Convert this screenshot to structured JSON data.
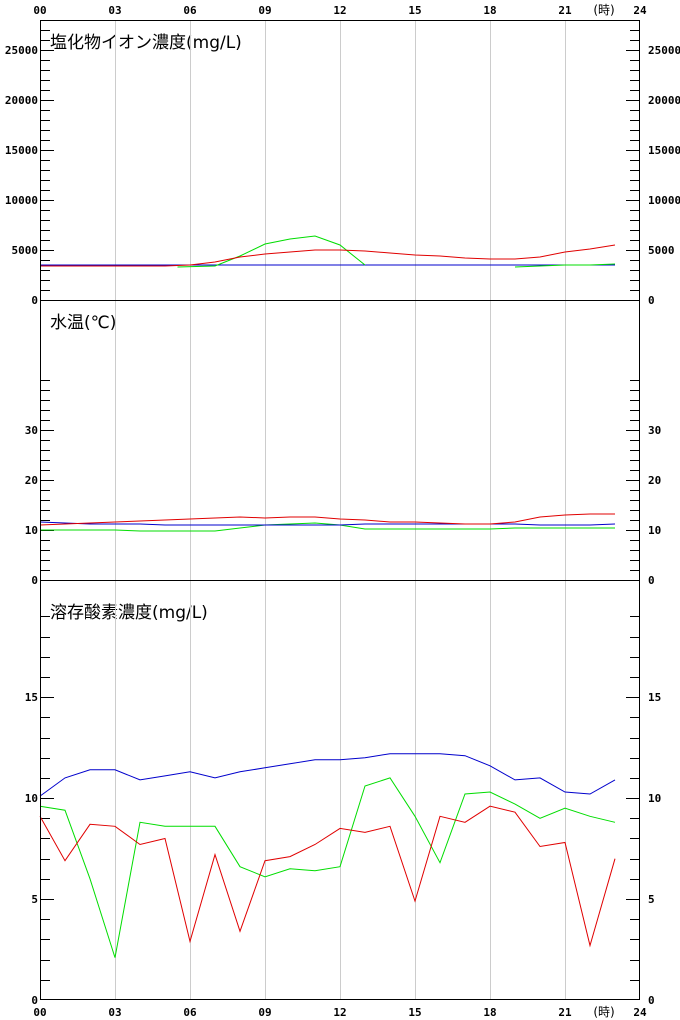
{
  "x_axis": {
    "ticks": [
      "00",
      "03",
      "06",
      "09",
      "12",
      "15",
      "18",
      "21",
      "24"
    ],
    "unit": "(時)",
    "range": [
      0,
      24
    ]
  },
  "colors": {
    "red": "#e00000",
    "green": "#00dd00",
    "blue": "#0000cc",
    "grid": "#cccccc"
  },
  "chart_data": [
    {
      "type": "line",
      "title": "塩化物イオン濃度(mg/L)",
      "ylim": [
        0,
        28000
      ],
      "y_ticks": [
        0,
        5000,
        10000,
        15000,
        20000,
        25000
      ],
      "y_tick_labels": [
        "0",
        "5000",
        "10000",
        "15000",
        "20000",
        "25000"
      ],
      "series": [
        {
          "color": "blue",
          "points": [
            [
              0,
              3500
            ],
            [
              1,
              3500
            ],
            [
              2,
              3500
            ],
            [
              3,
              3500
            ],
            [
              4,
              3500
            ],
            [
              5,
              3500
            ],
            [
              6,
              3500
            ],
            [
              7,
              3500
            ],
            [
              8,
              3500
            ],
            [
              9,
              3500
            ],
            [
              10,
              3500
            ],
            [
              11,
              3500
            ],
            [
              12,
              3500
            ],
            [
              13,
              3500
            ],
            [
              14,
              3500
            ],
            [
              15,
              3500
            ],
            [
              16,
              3500
            ],
            [
              17,
              3500
            ],
            [
              18,
              3500
            ],
            [
              19,
              3500
            ],
            [
              20,
              3500
            ],
            [
              21,
              3500
            ],
            [
              22,
              3500
            ],
            [
              23,
              3500
            ]
          ]
        },
        {
          "color": "green",
          "points": [
            [
              5.5,
              3300
            ],
            [
              7,
              3400
            ],
            [
              8,
              4400
            ],
            [
              9,
              5600
            ],
            [
              10,
              6100
            ],
            [
              11,
              6400
            ],
            [
              12,
              5500
            ],
            [
              13,
              3500
            ]
          ]
        },
        {
          "color": "green",
          "points": [
            [
              19,
              3300
            ],
            [
              20,
              3400
            ],
            [
              21,
              3500
            ],
            [
              22,
              3500
            ],
            [
              23,
              3600
            ]
          ]
        },
        {
          "color": "red",
          "points": [
            [
              0,
              3400
            ],
            [
              1,
              3400
            ],
            [
              2,
              3400
            ],
            [
              3,
              3400
            ],
            [
              4,
              3400
            ],
            [
              5,
              3400
            ],
            [
              6,
              3500
            ],
            [
              7,
              3800
            ],
            [
              8,
              4300
            ],
            [
              9,
              4600
            ],
            [
              10,
              4800
            ],
            [
              11,
              5000
            ],
            [
              12,
              5000
            ],
            [
              13,
              4900
            ],
            [
              14,
              4700
            ],
            [
              15,
              4500
            ],
            [
              16,
              4400
            ],
            [
              17,
              4200
            ],
            [
              18,
              4100
            ],
            [
              19,
              4100
            ],
            [
              20,
              4300
            ],
            [
              21,
              4800
            ],
            [
              22,
              5100
            ],
            [
              23,
              5500
            ]
          ]
        }
      ]
    },
    {
      "type": "line",
      "title": "水温(℃)",
      "ylim": [
        0,
        56
      ],
      "y_ticks": [
        0,
        10,
        20,
        30
      ],
      "y_tick_labels": [
        "0",
        "10",
        "20",
        "30"
      ],
      "series": [
        {
          "color": "green",
          "points": [
            [
              0,
              10
            ],
            [
              1,
              10
            ],
            [
              2,
              10
            ],
            [
              3,
              10
            ],
            [
              4,
              9.8
            ],
            [
              5,
              9.8
            ],
            [
              6,
              9.8
            ],
            [
              7,
              9.8
            ],
            [
              8,
              10.4
            ],
            [
              9,
              11.0
            ],
            [
              10,
              11.2
            ],
            [
              11,
              11.4
            ],
            [
              12,
              11.0
            ],
            [
              13,
              10.2
            ],
            [
              14,
              10.2
            ],
            [
              15,
              10.2
            ],
            [
              16,
              10.2
            ],
            [
              17,
              10.2
            ],
            [
              18,
              10.2
            ],
            [
              19,
              10.4
            ],
            [
              20,
              10.4
            ],
            [
              21,
              10.4
            ],
            [
              22,
              10.4
            ],
            [
              23,
              10.4
            ]
          ]
        },
        {
          "color": "blue",
          "points": [
            [
              0,
              11.6
            ],
            [
              1,
              11.4
            ],
            [
              2,
              11.2
            ],
            [
              3,
              11.2
            ],
            [
              4,
              11.2
            ],
            [
              5,
              11.0
            ],
            [
              6,
              11.0
            ],
            [
              7,
              11.0
            ],
            [
              8,
              11.0
            ],
            [
              9,
              11.0
            ],
            [
              10,
              11.0
            ],
            [
              11,
              11.0
            ],
            [
              12,
              11.0
            ],
            [
              13,
              11.2
            ],
            [
              14,
              11.2
            ],
            [
              15,
              11.2
            ],
            [
              16,
              11.2
            ],
            [
              17,
              11.2
            ],
            [
              18,
              11.2
            ],
            [
              19,
              11.2
            ],
            [
              20,
              11.0
            ],
            [
              21,
              11.0
            ],
            [
              22,
              11.0
            ],
            [
              23,
              11.2
            ]
          ]
        },
        {
          "color": "red",
          "points": [
            [
              0,
              11.0
            ],
            [
              1,
              11.2
            ],
            [
              2,
              11.4
            ],
            [
              3,
              11.6
            ],
            [
              4,
              11.8
            ],
            [
              5,
              12.0
            ],
            [
              6,
              12.2
            ],
            [
              7,
              12.4
            ],
            [
              8,
              12.6
            ],
            [
              9,
              12.4
            ],
            [
              10,
              12.6
            ],
            [
              11,
              12.6
            ],
            [
              12,
              12.2
            ],
            [
              13,
              12.0
            ],
            [
              14,
              11.6
            ],
            [
              15,
              11.6
            ],
            [
              16,
              11.4
            ],
            [
              17,
              11.2
            ],
            [
              18,
              11.2
            ],
            [
              19,
              11.6
            ],
            [
              20,
              12.6
            ],
            [
              21,
              13.0
            ],
            [
              22,
              13.2
            ],
            [
              23,
              13.2
            ]
          ]
        }
      ]
    },
    {
      "type": "line",
      "title": "溶存酸素濃度(mg/L)",
      "ylim": [
        0,
        20.8
      ],
      "y_ticks": [
        0,
        5,
        10,
        15
      ],
      "y_tick_labels": [
        "0",
        "5",
        "10",
        "15"
      ],
      "series": [
        {
          "color": "blue",
          "points": [
            [
              0,
              10.1
            ],
            [
              1,
              11.0
            ],
            [
              2,
              11.4
            ],
            [
              3,
              11.4
            ],
            [
              4,
              10.9
            ],
            [
              5,
              11.1
            ],
            [
              6,
              11.3
            ],
            [
              7,
              11.0
            ],
            [
              8,
              11.3
            ],
            [
              9,
              11.5
            ],
            [
              10,
              11.7
            ],
            [
              11,
              11.9
            ],
            [
              12,
              11.9
            ],
            [
              13,
              12.0
            ],
            [
              14,
              12.2
            ],
            [
              15,
              12.2
            ],
            [
              16,
              12.2
            ],
            [
              17,
              12.1
            ],
            [
              18,
              11.6
            ],
            [
              19,
              10.9
            ],
            [
              20,
              11.0
            ],
            [
              21,
              10.3
            ],
            [
              22,
              10.2
            ],
            [
              23,
              10.9
            ]
          ]
        },
        {
          "color": "green",
          "points": [
            [
              0,
              9.6
            ],
            [
              1,
              9.4
            ],
            [
              2,
              6.0
            ],
            [
              3,
              2.1
            ],
            [
              4,
              8.8
            ],
            [
              5,
              8.6
            ],
            [
              6,
              8.6
            ],
            [
              7,
              8.6
            ],
            [
              8,
              6.6
            ],
            [
              9,
              6.1
            ],
            [
              10,
              6.5
            ],
            [
              11,
              6.4
            ],
            [
              12,
              6.6
            ],
            [
              13,
              10.6
            ],
            [
              14,
              11.0
            ],
            [
              15,
              9.1
            ],
            [
              16,
              6.8
            ],
            [
              17,
              10.2
            ],
            [
              18,
              10.3
            ],
            [
              19,
              9.7
            ],
            [
              20,
              9.0
            ],
            [
              21,
              9.5
            ],
            [
              22,
              9.1
            ],
            [
              23,
              8.8
            ]
          ]
        },
        {
          "color": "red",
          "points": [
            [
              0,
              9.1
            ],
            [
              1,
              6.9
            ],
            [
              2,
              8.7
            ],
            [
              3,
              8.6
            ],
            [
              4,
              7.7
            ],
            [
              5,
              8.0
            ],
            [
              6,
              2.9
            ],
            [
              7,
              7.2
            ],
            [
              8,
              3.4
            ],
            [
              9,
              6.9
            ],
            [
              10,
              7.1
            ],
            [
              11,
              7.7
            ],
            [
              12,
              8.5
            ],
            [
              13,
              8.3
            ],
            [
              14,
              8.6
            ],
            [
              15,
              4.9
            ],
            [
              16,
              9.1
            ],
            [
              17,
              8.8
            ],
            [
              18,
              9.6
            ],
            [
              19,
              9.3
            ],
            [
              20,
              7.6
            ],
            [
              21,
              7.8
            ],
            [
              22,
              2.7
            ],
            [
              23,
              7.0
            ]
          ]
        }
      ]
    }
  ]
}
